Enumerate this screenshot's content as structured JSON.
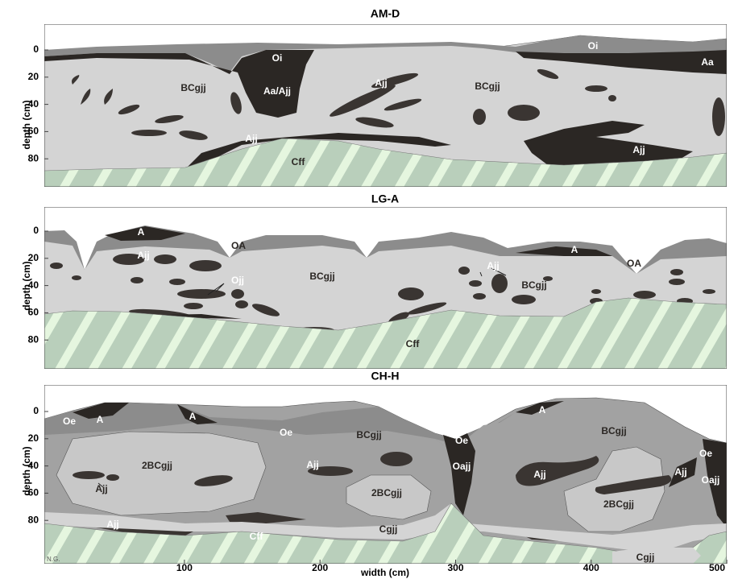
{
  "axes": {
    "y_label": "depth (cm)",
    "x_label": "width (cm)",
    "y_ticks": [
      0,
      20,
      40,
      60,
      80
    ],
    "x_ticks": [
      100,
      200,
      300,
      400,
      500
    ]
  },
  "panels": [
    {
      "title": "AM-D",
      "labels": [
        "Oi",
        "Oi",
        "Aa",
        "Aa/Ajj",
        "BCgjj",
        "BCgjj",
        "Ajj",
        "Ajj",
        "Ajj",
        "Cff"
      ]
    },
    {
      "title": "LG-A",
      "labels": [
        "A",
        "A",
        "OA",
        "OA",
        "Ajj",
        "Ojj",
        "BCgjj",
        "BCgjj",
        "Ajj",
        "Cff"
      ]
    },
    {
      "title": "CH-H",
      "labels": [
        "Oe",
        "A",
        "A",
        "Oe",
        "BCgjj",
        "Oe",
        "A",
        "BCgjj",
        "Oe",
        "2BCgjj",
        "Ajj",
        "Ajj",
        "Oajj",
        "Ajj",
        "Ajj",
        "Oajj",
        "2BCgjj",
        "2BCgjj",
        "Ajj",
        "Cff",
        "Cgjj",
        "Cgjj"
      ]
    }
  ],
  "credit": "N.G."
}
